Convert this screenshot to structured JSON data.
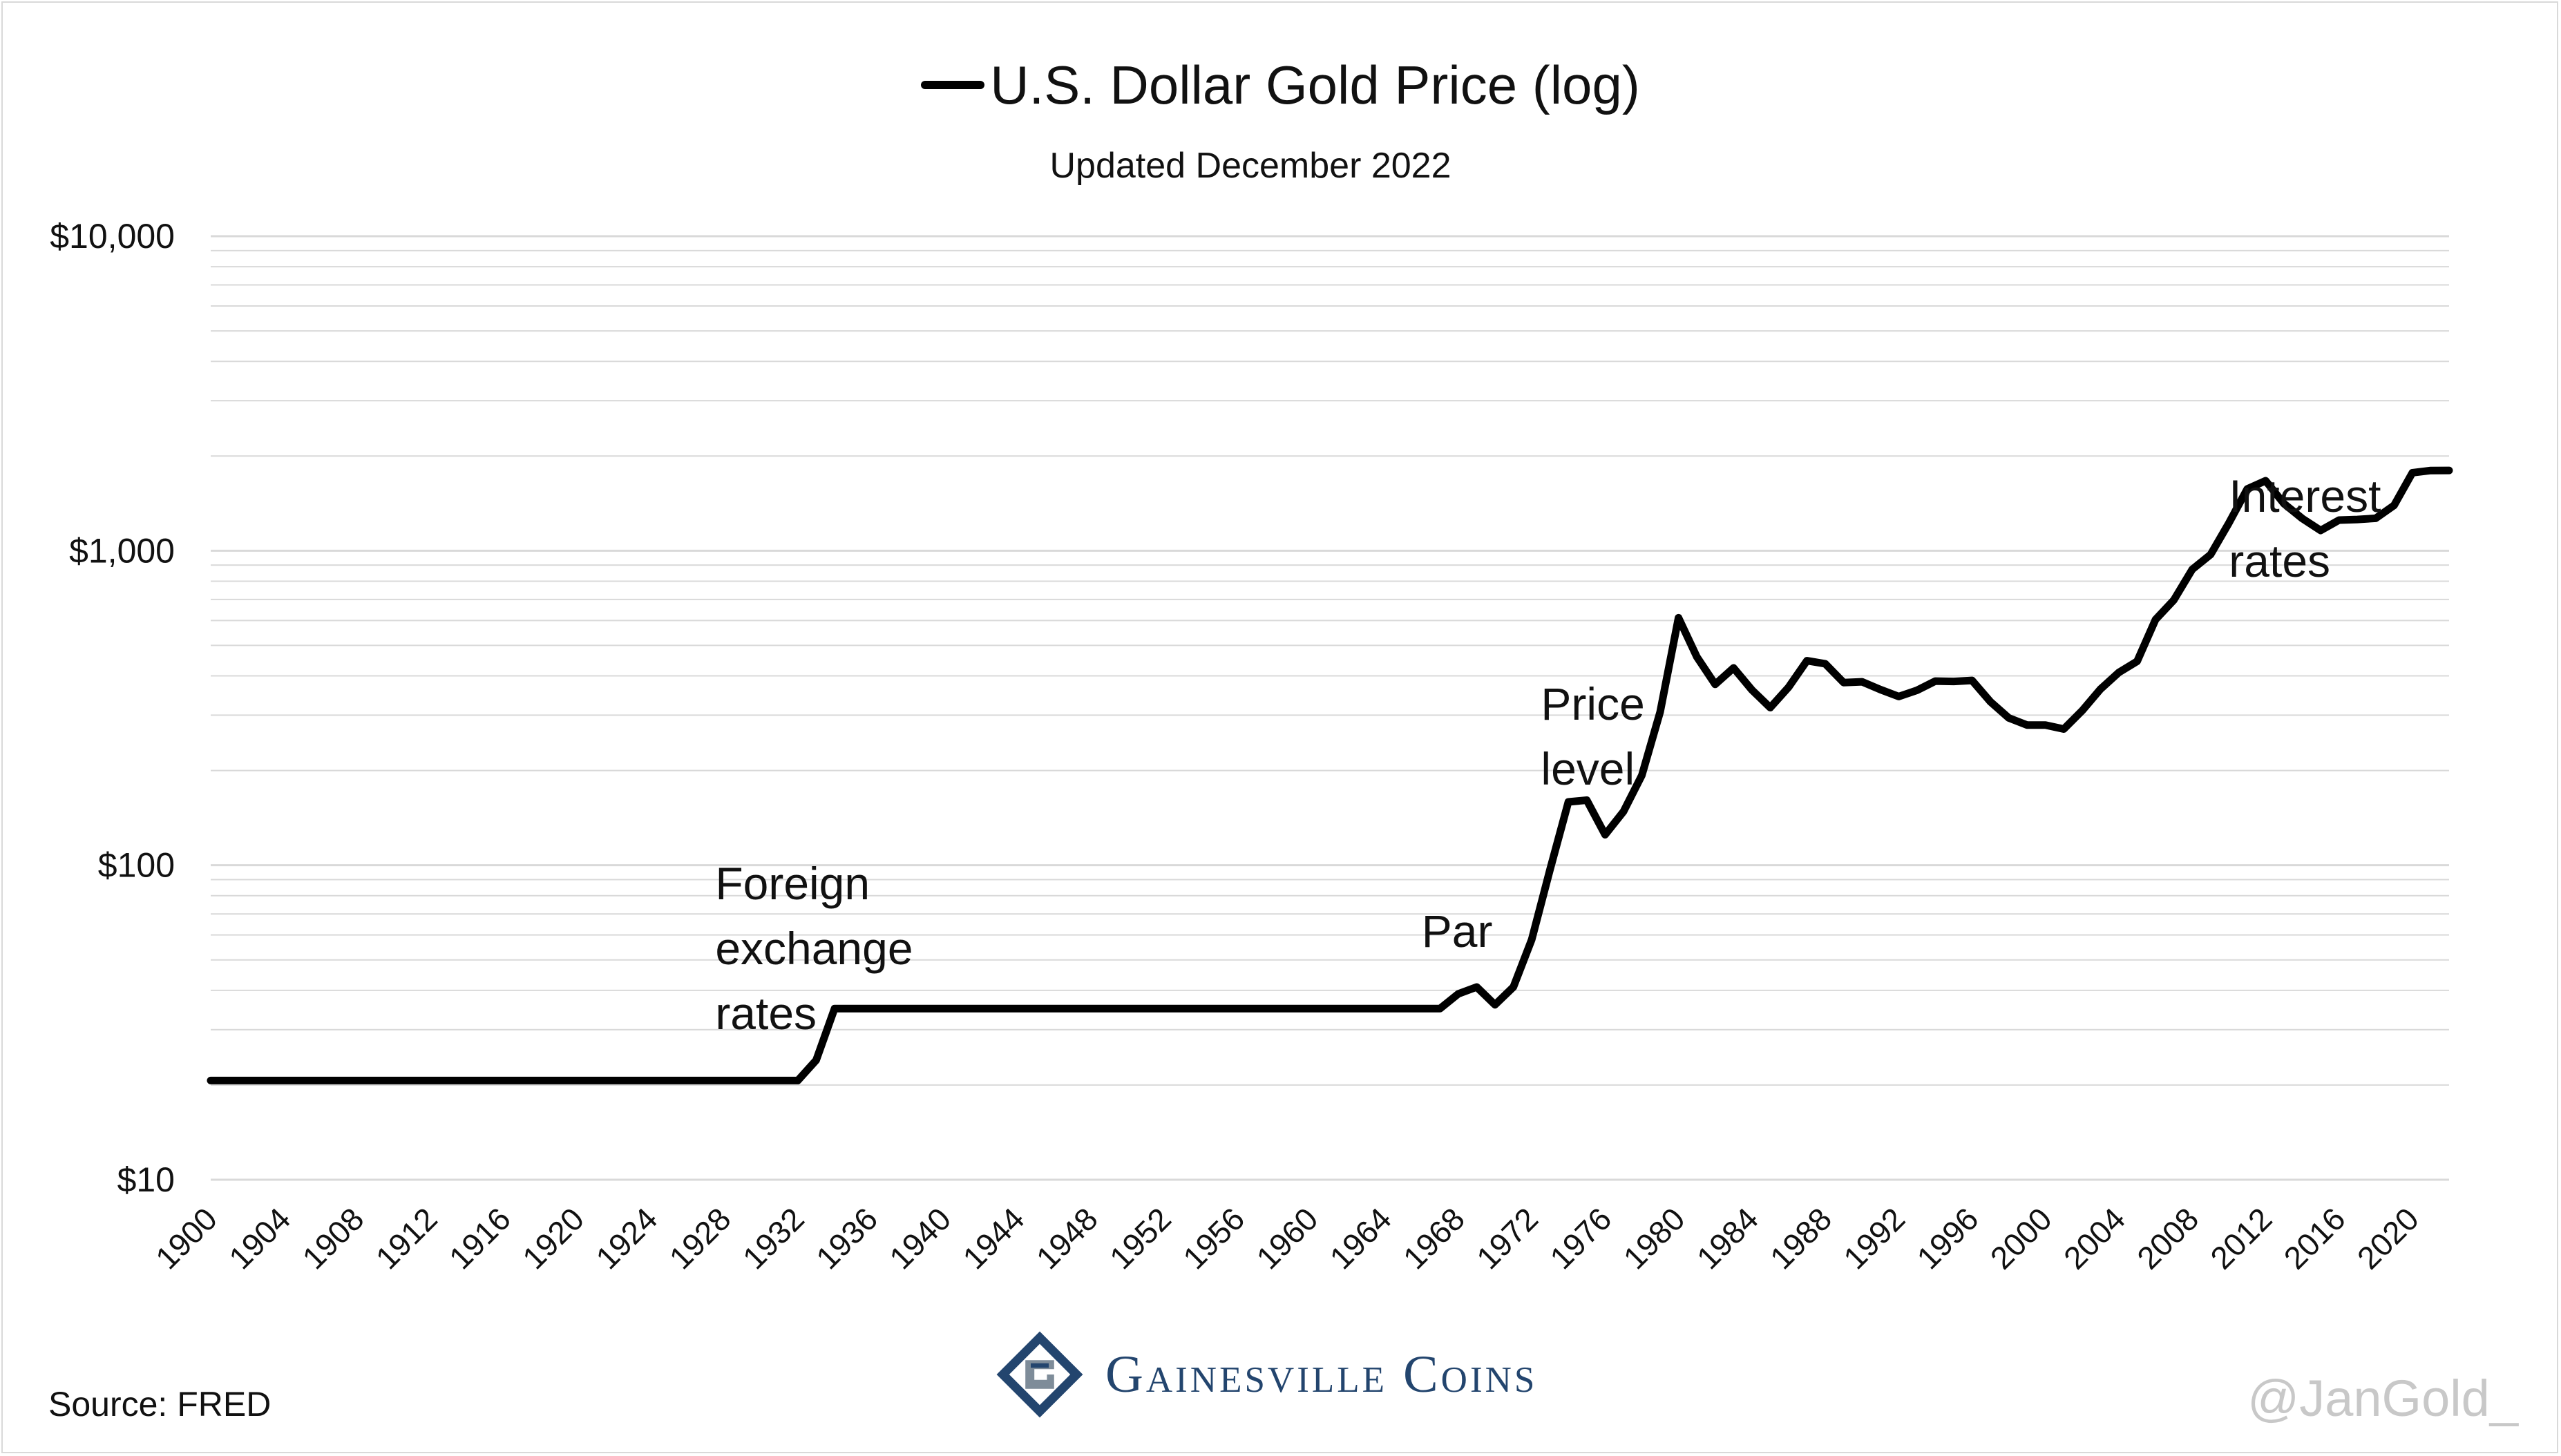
{
  "header": {
    "title": "U.S. Dollar Gold Price (log)",
    "subtitle": "Updated December 2022"
  },
  "footer": {
    "source": "Source: FRED",
    "handle": "@JanGold_",
    "logo_text": "Gainesville Coins"
  },
  "colors": {
    "line": "#000000",
    "gridline": "#d9d9d9",
    "logo_blue": "#23456e",
    "logo_accent": "#7e8c99",
    "handle": "#c8c8c8"
  },
  "chart_data": {
    "type": "line",
    "title": "U.S. Dollar Gold Price (log)",
    "subtitle": "Updated December 2022",
    "xlabel": "",
    "ylabel": "",
    "y_scale": "log",
    "ylim": [
      10,
      10000
    ],
    "xlim": [
      1900,
      2022
    ],
    "grid": true,
    "legend": "top-center",
    "y_ticks": [
      10,
      100,
      1000,
      10000
    ],
    "y_tick_labels": [
      "$10",
      "$100",
      "$1,000",
      "$10,000"
    ],
    "x_ticks": [
      1900,
      1904,
      1908,
      1912,
      1916,
      1920,
      1924,
      1928,
      1932,
      1936,
      1940,
      1944,
      1948,
      1952,
      1956,
      1960,
      1964,
      1968,
      1972,
      1976,
      1980,
      1984,
      1988,
      1992,
      1996,
      2000,
      2004,
      2008,
      2012,
      2016,
      2020
    ],
    "series": [
      {
        "name": "U.S. Dollar Gold Price (log)",
        "x": [
          1900,
          1932,
          1933,
          1934,
          1935,
          1966,
          1967,
          1968,
          1969,
          1970,
          1971,
          1972,
          1973,
          1974,
          1975,
          1976,
          1977,
          1978,
          1979,
          1980,
          1981,
          1982,
          1983,
          1984,
          1985,
          1986,
          1987,
          1988,
          1989,
          1990,
          1991,
          1992,
          1993,
          1994,
          1995,
          1996,
          1997,
          1998,
          1999,
          2000,
          2001,
          2002,
          2003,
          2004,
          2005,
          2006,
          2007,
          2008,
          2009,
          2010,
          2011,
          2012,
          2013,
          2014,
          2015,
          2016,
          2017,
          2018,
          2019,
          2020,
          2021,
          2022
        ],
        "y": [
          20.67,
          20.67,
          24,
          35,
          35,
          35,
          35,
          39,
          41,
          36,
          41,
          58,
          97,
          159,
          161,
          125,
          148,
          193,
          307,
          612,
          460,
          376,
          424,
          361,
          317,
          368,
          447,
          437,
          381,
          383,
          362,
          344,
          360,
          385,
          384,
          387,
          331,
          294,
          279,
          279,
          271,
          310,
          363,
          410,
          445,
          604,
          697,
          872,
          972,
          1225,
          1572,
          1669,
          1411,
          1266,
          1160,
          1251,
          1257,
          1268,
          1393,
          1770,
          1799,
          1800
        ]
      }
    ],
    "annotations": [
      {
        "lines": [
          "Foreign",
          "exchange",
          "rates"
        ],
        "x": 1927.5,
        "y": 78
      },
      {
        "lines": [
          "Par"
        ],
        "x": 1966,
        "y": 55
      },
      {
        "lines": [
          "Price",
          "level"
        ],
        "x": 1972.5,
        "y": 290
      },
      {
        "lines": [
          "Interest",
          "rates"
        ],
        "x": 2010,
        "y": 1330
      }
    ]
  }
}
